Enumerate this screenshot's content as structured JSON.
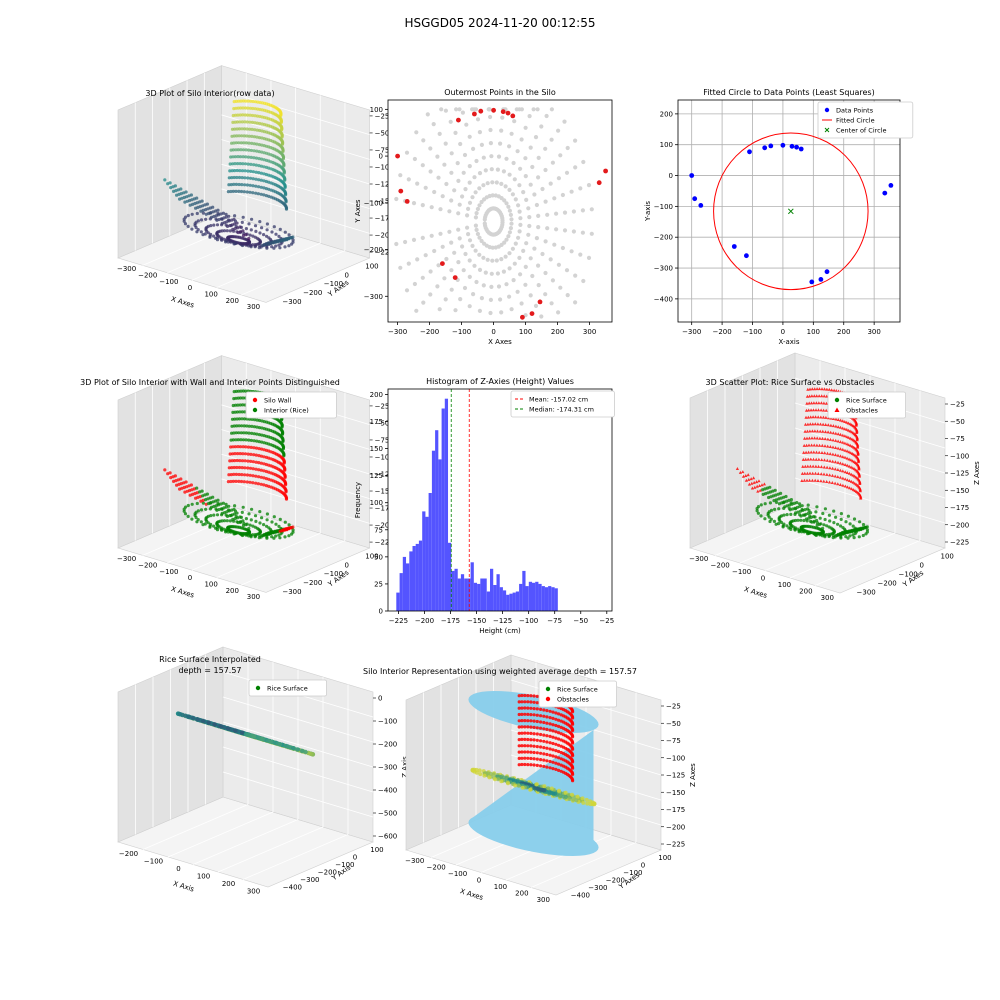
{
  "suptitle": "HSGGD05 2024-11-20 00:12:55",
  "colors": {
    "gray_points": "#d3d3d3",
    "outer_points": "#e31a1c",
    "data_points": "#0000ff",
    "fitted_circle": "#ff0000",
    "center_marker": "#008000",
    "wall": "#ff0000",
    "rice": "#008000",
    "hist_bars": "#4b4bff",
    "mean_line": "#ff0000",
    "median_line": "#008000",
    "silo_cylinder": "#87ceeb",
    "viridis_low": "#440154",
    "viridis_mid": "#21918c",
    "viridis_high": "#fde725"
  },
  "chart_data": [
    {
      "id": "p1",
      "type": "scatter",
      "projection": "3d",
      "title": "3D Plot of Silo Interior(row data)",
      "xlabel": "X Axes",
      "ylabel": "Y Axes",
      "zlabel": "Z Axes (Depth)",
      "x_ticks": [
        "−300",
        "−200",
        "−100",
        "0",
        "100",
        "200",
        "300"
      ],
      "y_ticks": [
        "100",
        "0",
        "−100",
        "−200",
        "−300"
      ],
      "z_ticks": [
        "−25",
        "−50",
        "−75",
        "−100",
        "−125",
        "−150",
        "−175",
        "−200",
        "−225"
      ],
      "colormap": "viridis"
    },
    {
      "id": "p2",
      "type": "scatter",
      "title": "Outermost Points in the Silo",
      "xlabel": "X Axes",
      "ylabel": "Y Axes",
      "xlim": [
        -330,
        370
      ],
      "ylim": [
        -355,
        120
      ],
      "x_ticks": [
        -300,
        -200,
        -100,
        0,
        100,
        200,
        300
      ],
      "y_ticks": [
        100,
        0,
        -100,
        -200,
        -300
      ],
      "x_tick_labels": [
        "−300",
        "−200",
        "−100",
        "0",
        "100",
        "200",
        "300"
      ],
      "y_tick_labels": [
        "100",
        "0",
        "−100",
        "−200",
        "−300"
      ],
      "outermost_points": [
        [
          -300,
          0
        ],
        [
          -290,
          -75
        ],
        [
          -270,
          -97
        ],
        [
          -110,
          77
        ],
        [
          -60,
          90
        ],
        [
          -40,
          96
        ],
        [
          0,
          98
        ],
        [
          30,
          95
        ],
        [
          45,
          92
        ],
        [
          60,
          86
        ],
        [
          -160,
          -230
        ],
        [
          -120,
          -260
        ],
        [
          90,
          -345
        ],
        [
          120,
          -337
        ],
        [
          145,
          -312
        ],
        [
          330,
          -57
        ],
        [
          350,
          -32
        ]
      ]
    },
    {
      "id": "p3",
      "type": "scatter",
      "title": "Fitted Circle to Data Points (Least Squares)",
      "xlabel": "X-axis",
      "ylabel": "Y-axis",
      "xlim": [
        -345,
        385
      ],
      "ylim": [
        -475,
        245
      ],
      "x_ticks": [
        -300,
        -200,
        -100,
        0,
        100,
        200,
        300
      ],
      "y_ticks": [
        200,
        100,
        0,
        -100,
        -200,
        -300,
        -400
      ],
      "x_tick_labels": [
        "−300",
        "−200",
        "−100",
        "0",
        "100",
        "200",
        "300"
      ],
      "y_tick_labels": [
        "200",
        "100",
        "0",
        "−100",
        "−200",
        "−300",
        "−400"
      ],
      "grid": true,
      "legend_position": "upper right",
      "legend": [
        "Data Points",
        "Fitted Circle",
        "Center of Circle"
      ],
      "data_points": [
        [
          -300,
          0
        ],
        [
          -290,
          -75
        ],
        [
          -270,
          -97
        ],
        [
          -110,
          77
        ],
        [
          -60,
          90
        ],
        [
          -40,
          96
        ],
        [
          0,
          98
        ],
        [
          30,
          95
        ],
        [
          45,
          92
        ],
        [
          60,
          86
        ],
        [
          -160,
          -230
        ],
        [
          -120,
          -260
        ],
        [
          95,
          -345
        ],
        [
          125,
          -337
        ],
        [
          145,
          -312
        ],
        [
          335,
          -57
        ],
        [
          355,
          -32
        ]
      ],
      "circle_center": [
        26,
        -116
      ],
      "circle_radius": 254
    },
    {
      "id": "p4",
      "type": "scatter",
      "projection": "3d",
      "title": "3D Plot of Silo Interior with Wall and Interior Points Distinguished",
      "xlabel": "X Axes",
      "ylabel": "Y Axes",
      "zlabel": "Z Axes (Depth)",
      "x_ticks": [
        "−300",
        "−200",
        "−100",
        "0",
        "100",
        "200",
        "300"
      ],
      "y_ticks": [
        "100",
        "0",
        "−100",
        "−200",
        "−300"
      ],
      "z_ticks": [
        "−25",
        "−50",
        "−75",
        "−100",
        "−125",
        "−150",
        "−175",
        "−200",
        "−225"
      ],
      "legend": [
        "Silo Wall",
        "Interior (Rice)"
      ]
    },
    {
      "id": "p5",
      "type": "bar",
      "title": "Histogram of Z-Axies (Height) Values",
      "xlabel": "Height (cm)",
      "ylabel": "Frequency",
      "xlim": [
        -235,
        -20
      ],
      "ylim": [
        0,
        205
      ],
      "x_ticks": [
        -225,
        -200,
        -175,
        -150,
        -125,
        -100,
        -75,
        -50,
        -25
      ],
      "y_ticks": [
        0,
        25,
        50,
        75,
        100,
        125,
        150,
        175,
        200
      ],
      "x_tick_labels": [
        "−225",
        "−200",
        "−175",
        "−150",
        "−125",
        "−100",
        "−75",
        "−50",
        "−25"
      ],
      "y_tick_labels": [
        "0",
        "25",
        "50",
        "75",
        "100",
        "125",
        "150",
        "175",
        "200"
      ],
      "bin_start": -227,
      "bin_width": 3.1,
      "values": [
        17,
        35,
        50,
        44,
        55,
        60,
        62,
        65,
        92,
        87,
        109,
        148,
        167,
        140,
        187,
        196,
        63,
        37,
        39,
        30,
        34,
        30,
        30,
        45,
        26,
        25,
        30,
        30,
        18,
        39,
        24,
        34,
        22,
        19,
        15,
        16,
        17,
        18,
        25,
        37,
        23,
        27,
        26,
        27,
        25,
        23,
        22,
        23,
        22,
        21
      ],
      "mean": -157.02,
      "median": -174.31,
      "legend": [
        "Mean: -157.02 cm",
        "Median: -174.31 cm"
      ]
    },
    {
      "id": "p6",
      "type": "scatter",
      "projection": "3d",
      "title": "3D Scatter Plot: Rice Surface vs Obstacles",
      "xlabel": "X Axes",
      "ylabel": "Y Axes",
      "zlabel": "Z Axes",
      "x_ticks": [
        "−300",
        "−200",
        "−100",
        "0",
        "100",
        "200",
        "300"
      ],
      "y_ticks": [
        "100",
        "0",
        "−100",
        "−200",
        "−300"
      ],
      "z_ticks": [
        "−25",
        "−50",
        "−75",
        "−100",
        "−125",
        "−150",
        "−175",
        "−200",
        "−225"
      ],
      "legend": [
        "Rice Surface",
        "Obstacles"
      ]
    },
    {
      "id": "p7",
      "type": "area",
      "projection": "3d",
      "title": "Rice Surface Interpolated",
      "subtitle": "depth = 157.57",
      "xlabel": "X Axis",
      "ylabel": "Y Axis",
      "zlabel": "Z Axis",
      "x_ticks": [
        "−200",
        "−100",
        "0",
        "100",
        "200",
        "300"
      ],
      "y_ticks": [
        "100",
        "0",
        "−100",
        "−200",
        "−300",
        "−400"
      ],
      "z_ticks": [
        "0",
        "−100",
        "−200",
        "−300",
        "−400",
        "−500",
        "−600"
      ],
      "legend": [
        "Rice Surface"
      ],
      "depth": 157.57
    },
    {
      "id": "p8",
      "type": "area",
      "projection": "3d",
      "title": "Silo Interior Representation using weighted average depth = 157.57",
      "xlabel": "X Axes",
      "ylabel": "Y Axes",
      "zlabel": "Z Axes",
      "x_ticks": [
        "−300",
        "−200",
        "−100",
        "0",
        "100",
        "200",
        "300"
      ],
      "y_ticks": [
        "100",
        "0",
        "−100",
        "−200",
        "−300",
        "−400"
      ],
      "z_ticks": [
        "−25",
        "−50",
        "−75",
        "−100",
        "−125",
        "−150",
        "−175",
        "−200",
        "−225"
      ],
      "legend": [
        "Rice Surface",
        "Obstacles"
      ],
      "depth": 157.57
    }
  ]
}
